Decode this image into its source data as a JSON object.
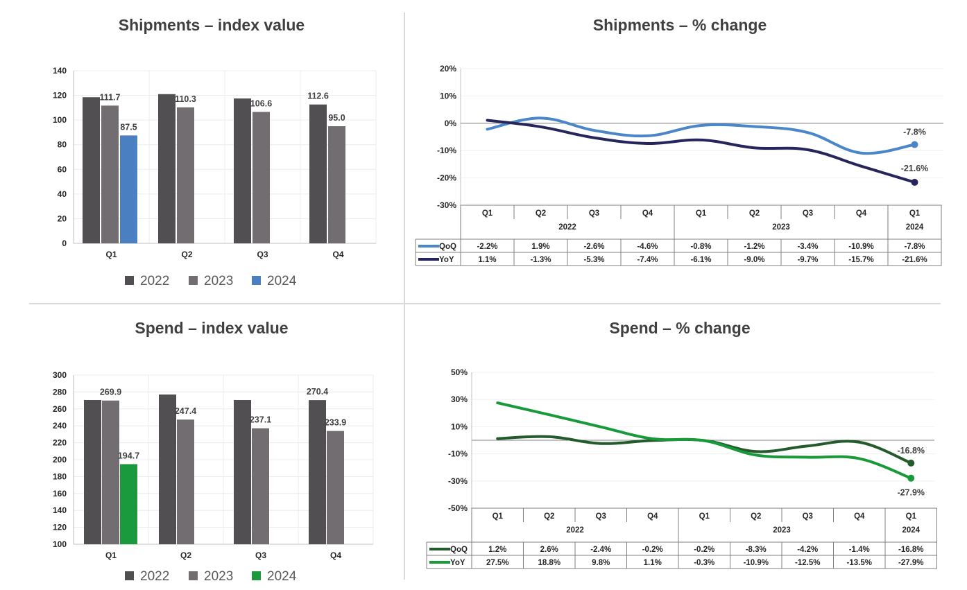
{
  "colors": {
    "c2022": "#524f52",
    "c2023": "#716d71",
    "ship2024": "#4a7fc1",
    "spend2024": "#1a9a3c",
    "shipQoQ": "#4a86c8",
    "shipYoY": "#27265c",
    "spendQoQ": "#235b2c",
    "spendYoY": "#199a3a"
  },
  "chart_data": [
    {
      "id": "ship_index",
      "type": "bar",
      "title": "Shipments – index value",
      "categories": [
        "Q1",
        "Q2",
        "Q3",
        "Q4"
      ],
      "ylim": [
        0,
        140
      ],
      "yticks": [
        "0",
        "20",
        "40",
        "60",
        "80",
        "100",
        "120",
        "140"
      ],
      "series": [
        {
          "name": "2022",
          "values": [
            118.5,
            121.0,
            117.5,
            112.6
          ]
        },
        {
          "name": "2023",
          "values": [
            111.7,
            110.3,
            106.6,
            95.0
          ]
        },
        {
          "name": "2024",
          "values": [
            87.5,
            null,
            null,
            null
          ]
        }
      ],
      "data_labels": [
        {
          "text": "111.7",
          "series": 1,
          "index": 0
        },
        {
          "text": "87.5",
          "series": 2,
          "index": 0
        },
        {
          "text": "110.3",
          "series": 1,
          "index": 1
        },
        {
          "text": "106.6",
          "series": 1,
          "index": 2
        },
        {
          "text": "112.6",
          "series": 0,
          "index": 3
        },
        {
          "text": "95.0",
          "series": 1,
          "index": 3
        }
      ],
      "legend": [
        "2022",
        "2023",
        "2024"
      ]
    },
    {
      "id": "ship_pct",
      "type": "line",
      "title": "Shipments – % change",
      "x": [
        "Q1",
        "Q2",
        "Q3",
        "Q4",
        "Q1",
        "Q2",
        "Q3",
        "Q4",
        "Q1"
      ],
      "years": [
        {
          "label": "2022",
          "span": 4
        },
        {
          "label": "2023",
          "span": 4
        },
        {
          "label": "2024",
          "span": 1
        }
      ],
      "ylim": [
        -30,
        20
      ],
      "yticks": [
        "-30%",
        "-20%",
        "-10%",
        "0%",
        "10%",
        "20%"
      ],
      "series": [
        {
          "name": "QoQ",
          "values": [
            -2.2,
            1.9,
            -2.6,
            -4.6,
            -0.8,
            -1.2,
            -3.4,
            -10.9,
            -7.8
          ],
          "table": [
            "-2.2%",
            "1.9%",
            "-2.6%",
            "-4.6%",
            "-0.8%",
            "-1.2%",
            "-3.4%",
            "-10.9%",
            "-7.8%"
          ],
          "end_label": "-7.8%"
        },
        {
          "name": "YoY",
          "values": [
            1.1,
            -1.3,
            -5.3,
            -7.4,
            -6.1,
            -9.0,
            -9.7,
            -15.7,
            -21.6
          ],
          "table": [
            "1.1%",
            "-1.3%",
            "-5.3%",
            "-7.4%",
            "-6.1%",
            "-9.0%",
            "-9.7%",
            "-15.7%",
            "-21.6%"
          ],
          "end_label": "-21.6%"
        }
      ]
    },
    {
      "id": "spend_index",
      "type": "bar",
      "title": "Spend – index value",
      "categories": [
        "Q1",
        "Q2",
        "Q3",
        "Q4"
      ],
      "ylim": [
        100,
        300
      ],
      "yticks": [
        "100",
        "120",
        "140",
        "160",
        "180",
        "200",
        "220",
        "240",
        "260",
        "280",
        "300"
      ],
      "series": [
        {
          "name": "2022",
          "values": [
            270.5,
            277.0,
            270.5,
            270.4
          ]
        },
        {
          "name": "2023",
          "values": [
            269.9,
            247.4,
            237.1,
            233.9
          ]
        },
        {
          "name": "2024",
          "values": [
            194.7,
            null,
            null,
            null
          ]
        }
      ],
      "data_labels": [
        {
          "text": "269.9",
          "series": 1,
          "index": 0
        },
        {
          "text": "194.7",
          "series": 2,
          "index": 0
        },
        {
          "text": "247.4",
          "series": 1,
          "index": 1
        },
        {
          "text": "237.1",
          "series": 1,
          "index": 2
        },
        {
          "text": "270.4",
          "series": 0,
          "index": 3
        },
        {
          "text": "233.9",
          "series": 1,
          "index": 3
        }
      ],
      "legend": [
        "2022",
        "2023",
        "2024"
      ]
    },
    {
      "id": "spend_pct",
      "type": "line",
      "title": "Spend – % change",
      "x": [
        "Q1",
        "Q2",
        "Q3",
        "Q4",
        "Q1",
        "Q2",
        "Q3",
        "Q4",
        "Q1"
      ],
      "years": [
        {
          "label": "2022",
          "span": 4
        },
        {
          "label": "2023",
          "span": 4
        },
        {
          "label": "2024",
          "span": 1
        }
      ],
      "ylim": [
        -50,
        50
      ],
      "yticks": [
        "-50%",
        "-30%",
        "-10%",
        "10%",
        "30%",
        "50%"
      ],
      "series": [
        {
          "name": "QoQ",
          "values": [
            1.2,
            2.6,
            -2.4,
            -0.2,
            -0.2,
            -8.3,
            -4.2,
            -1.4,
            -16.8
          ],
          "table": [
            "1.2%",
            "2.6%",
            "-2.4%",
            "-0.2%",
            "-0.2%",
            "-8.3%",
            "-4.2%",
            "-1.4%",
            "-16.8%"
          ],
          "end_label": "-16.8%"
        },
        {
          "name": "YoY",
          "values": [
            27.5,
            18.8,
            9.8,
            1.1,
            -0.3,
            -10.9,
            -12.5,
            -13.5,
            -27.9
          ],
          "table": [
            "27.5%",
            "18.8%",
            "9.8%",
            "1.1%",
            "-0.3%",
            "-10.9%",
            "-12.5%",
            "-13.5%",
            "-27.9%"
          ],
          "end_label": "-27.9%"
        }
      ]
    }
  ]
}
